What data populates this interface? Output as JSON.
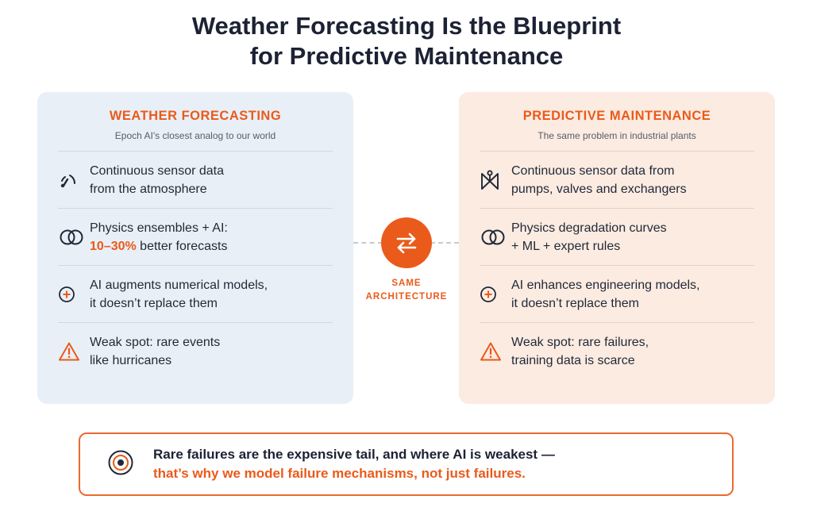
{
  "title": {
    "line1": "Weather Forecasting Is the Blueprint",
    "line2": "for Predictive Maintenance"
  },
  "left_card": {
    "title": "WEATHER FORECASTING",
    "subtitle": "Epoch AI's closest analog to our world",
    "rows": [
      {
        "icon": "gauge-icon",
        "line1": "Continuous sensor data",
        "line2": "from the atmosphere"
      },
      {
        "icon": "ensemble-rings-icon",
        "line1": "Physics ensembles + AI:",
        "line2_accent": "10–30%",
        "line2_rest": " better forecasts"
      },
      {
        "icon": "plus-circle-icon",
        "line1": "AI augments numerical models,",
        "line2": "it doesn’t replace them"
      },
      {
        "icon": "warning-icon",
        "line1": "Weak spot: rare events",
        "line2": "like hurricanes"
      }
    ]
  },
  "right_card": {
    "title": "PREDICTIVE MAINTENANCE",
    "subtitle": "The same problem in industrial plants",
    "rows": [
      {
        "icon": "valve-icon",
        "line1": "Continuous sensor data from",
        "line2": "pumps, valves and exchangers"
      },
      {
        "icon": "ensemble-rings-icon",
        "line1": "Physics degradation curves",
        "line2": "+ ML + expert rules"
      },
      {
        "icon": "plus-circle-icon",
        "line1": "AI enhances engineering models,",
        "line2": "it doesn’t replace them"
      },
      {
        "icon": "warning-icon",
        "line1": "Weak spot: rare failures,",
        "line2": "training data is scarce"
      }
    ]
  },
  "center": {
    "icon": "swap-arrows-icon",
    "label_line1": "SAME",
    "label_line2": "ARCHITECTURE"
  },
  "callout": {
    "icon": "target-icon",
    "line1": "Rare failures are the expensive tail, and where AI is weakest —",
    "line2": "that’s why we model failure mechanisms, not just failures."
  },
  "colors": {
    "accent": "#ea5a1a",
    "left_card_bg": "#e9eff6",
    "right_card_bg": "#fcebe1",
    "title_text": "#1c2233"
  }
}
